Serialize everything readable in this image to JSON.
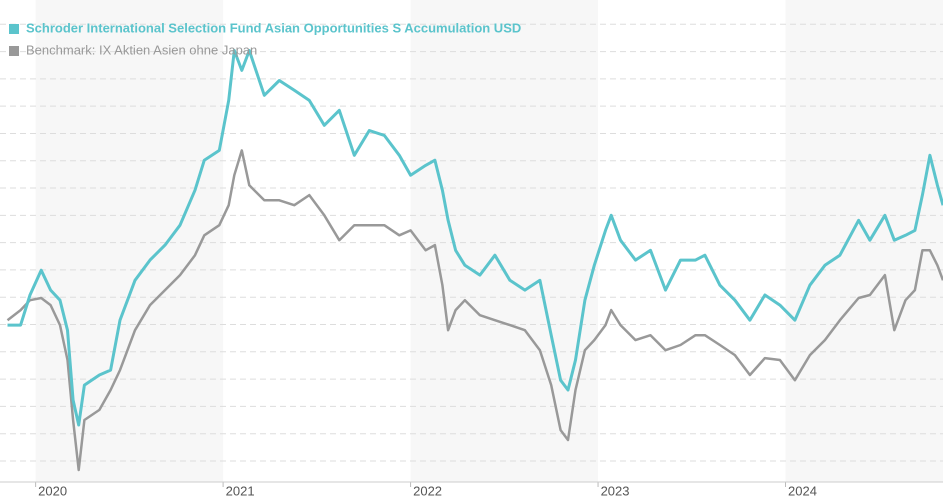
{
  "chart_data": {
    "type": "line",
    "x": [
      2019.85,
      2019.92,
      2019.97,
      2020.03,
      2020.08,
      2020.13,
      2020.17,
      2020.2,
      2020.23,
      2020.26,
      2020.34,
      2020.4,
      2020.45,
      2020.53,
      2020.61,
      2020.69,
      2020.77,
      2020.85,
      2020.9,
      2020.98,
      2021.03,
      2021.06,
      2021.1,
      2021.14,
      2021.22,
      2021.3,
      2021.38,
      2021.46,
      2021.54,
      2021.62,
      2021.7,
      2021.78,
      2021.86,
      2021.94,
      2022.0,
      2022.08,
      2022.13,
      2022.17,
      2022.2,
      2022.24,
      2022.29,
      2022.37,
      2022.45,
      2022.53,
      2022.61,
      2022.69,
      2022.75,
      2022.8,
      2022.84,
      2022.88,
      2022.93,
      2022.98,
      2023.04,
      2023.07,
      2023.12,
      2023.2,
      2023.28,
      2023.36,
      2023.44,
      2023.52,
      2023.57,
      2023.65,
      2023.73,
      2023.81,
      2023.89,
      2023.97,
      2024.05,
      2024.13,
      2024.21,
      2024.29,
      2024.39,
      2024.45,
      2024.53,
      2024.58,
      2024.64,
      2024.69,
      2024.73,
      2024.77,
      2024.81,
      2024.84
    ],
    "series": [
      {
        "name": "Schroder International Selection Fund Asian Opportunities S Accumulation USD",
        "color": "#5bc4cc",
        "values": [
          59.8,
          59.8,
          70.8,
          79.9,
          72.6,
          68.9,
          57.9,
          32.3,
          23.2,
          37.8,
          41.5,
          43.3,
          61.6,
          76.2,
          83.6,
          89.1,
          96.4,
          109.2,
          120.2,
          123.8,
          142.1,
          160.4,
          153.1,
          160.4,
          144.0,
          149.4,
          145.8,
          142.1,
          133.0,
          138.5,
          122.0,
          131.1,
          129.3,
          122.0,
          114.7,
          118.3,
          120.2,
          109.2,
          98.2,
          87.2,
          81.7,
          78.1,
          85.4,
          76.2,
          72.6,
          76.2,
          56.1,
          39.6,
          36.0,
          47.0,
          68.9,
          81.7,
          94.5,
          100.0,
          90.9,
          83.6,
          87.2,
          72.6,
          83.6,
          83.6,
          85.4,
          74.4,
          68.9,
          61.6,
          70.8,
          67.1,
          61.6,
          74.4,
          81.7,
          85.4,
          98.2,
          90.9,
          100.0,
          90.9,
          92.7,
          94.5,
          107.4,
          122.0,
          111.0,
          103.7
        ]
      },
      {
        "name": "Benchmark: IX Aktien Asien ohne Japan",
        "color": "#999999",
        "values": [
          61.6,
          65.3,
          68.9,
          69.7,
          67.1,
          59.8,
          47.0,
          25.0,
          6.7,
          25.0,
          28.7,
          36.0,
          43.3,
          57.9,
          67.1,
          72.6,
          78.1,
          85.4,
          92.7,
          96.4,
          103.7,
          114.7,
          123.8,
          111.0,
          105.5,
          105.5,
          103.7,
          107.4,
          100.0,
          90.9,
          96.4,
          96.4,
          96.4,
          92.7,
          94.5,
          87.2,
          89.1,
          74.4,
          57.9,
          65.3,
          68.9,
          63.4,
          61.6,
          59.8,
          57.9,
          50.6,
          37.8,
          21.3,
          17.7,
          36.0,
          50.6,
          54.3,
          59.8,
          65.3,
          59.8,
          54.3,
          56.1,
          50.6,
          52.5,
          56.1,
          56.1,
          52.5,
          48.8,
          41.5,
          47.7,
          47.0,
          39.6,
          48.8,
          54.3,
          61.6,
          69.7,
          70.8,
          78.1,
          57.9,
          68.9,
          72.6,
          87.2,
          87.2,
          81.7,
          76.2
        ]
      }
    ],
    "xlim": [
      2019.81,
      2024.84
    ],
    "xticks": [
      2020,
      2021,
      2022,
      2023,
      2024
    ],
    "ylim": [
      2.3,
      178.9
    ],
    "yticks": [
      10,
      20,
      30,
      40,
      50,
      60,
      70,
      80,
      90,
      100,
      110,
      120,
      130,
      140,
      150,
      160,
      170
    ],
    "grid": true,
    "legend": "top-left"
  }
}
